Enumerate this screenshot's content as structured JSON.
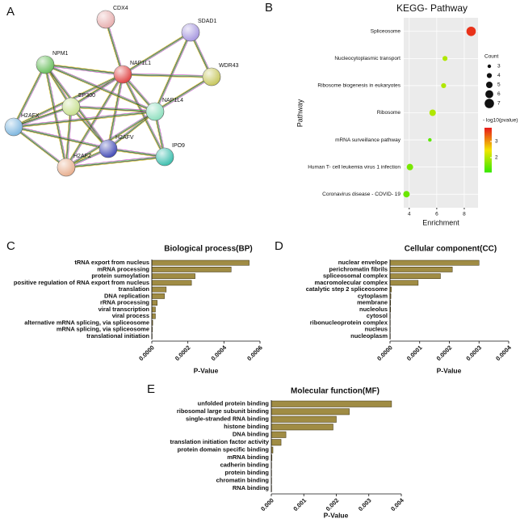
{
  "chart_data": [
    {
      "type": "network",
      "panel": "A",
      "nodes": [
        "CDX4",
        "SDAD1",
        "NPM1",
        "NAP1L1",
        "WDR43",
        "EP300",
        "NAP1L4",
        "H2AFX",
        "H2AFV",
        "IPO9",
        "H2AFZ"
      ]
    },
    {
      "type": "dot",
      "panel": "B",
      "title": "KEGG- Pathway",
      "x_label": "Enrichment",
      "y_label": "Pathway",
      "categories": [
        "Spliceosome",
        "Nucleocytoplasmic transport",
        "Ribosome biogenesis in eukaryotes",
        "Ribosome",
        "mRNA surveillance pathway",
        "Human T- cell leukemia virus 1 infection",
        "Coronavirus disease -  COVID- 19"
      ],
      "values": [
        8.5,
        6.6,
        6.5,
        5.7,
        5.5,
        4.05,
        3.8
      ],
      "sizes": [
        7,
        4,
        4,
        5,
        3,
        5,
        5
      ],
      "color_values": [
        3.7,
        2.0,
        2.0,
        2.0,
        1.4,
        1.6,
        1.5
      ],
      "xlim": [
        3.6,
        9.0
      ],
      "xticks": [
        4,
        6,
        8
      ],
      "size_title": "Count",
      "size_ticks": [
        3,
        4,
        5,
        6,
        7
      ],
      "color_title": "- log10(pvalue)",
      "clim": [
        1.1,
        3.85
      ],
      "cticks": [
        2,
        3
      ],
      "colorscale": [
        "#33e800",
        "#f2e600",
        "#e81c1c"
      ],
      "grid": true
    },
    {
      "type": "hbar",
      "panel": "C",
      "title": "Biological process(BP)",
      "x_label": "P-Value",
      "color": "#a08c44",
      "categories": [
        "tRNA export from nucleus",
        "mRNA processing",
        "protein sumoylation",
        "positive regulation of RNA export from nucleus",
        "translation",
        "DNA replication",
        "rRNA processing",
        "viral transcription",
        "viral process",
        "alternative mRNA splicing, via spliceosome",
        "mRNA splicing, via spliceosome",
        "translational initiation"
      ],
      "values": [
        0.00054,
        0.00044,
        0.00024,
        0.00022,
        8e-05,
        7e-05,
        3e-05,
        2e-05,
        2e-05,
        5e-06,
        3e-06,
        2e-06
      ],
      "xlim": [
        0,
        0.0006
      ],
      "xticks": [
        {
          "value": 0,
          "label": "0.0000"
        },
        {
          "value": 0.0002,
          "label": "0.0002"
        },
        {
          "value": 0.0004,
          "label": "0.0004"
        },
        {
          "value": 0.0006,
          "label": "0.0006"
        }
      ]
    },
    {
      "type": "hbar",
      "panel": "D",
      "title": "Cellular component(CC)",
      "x_label": "P-Value",
      "color": "#a08c44",
      "categories": [
        "nuclear envelope",
        "perichromatin fibrils",
        "spliceosomal complex",
        "macromolecular complex",
        "catalytic step 2 spliceosome",
        "cytoplasm",
        "membrane",
        "nucleolus",
        "cytosol",
        "ribonucleoprotein complex",
        "nucleus",
        "nucleoplasm"
      ],
      "values": [
        0.0003,
        0.00021,
        0.00017,
        9.5e-05,
        5e-06,
        3e-06,
        2e-06,
        2e-06,
        1e-06,
        1e-06,
        1e-06,
        1e-06
      ],
      "xlim": [
        0,
        0.0004
      ],
      "xticks": [
        {
          "value": 0,
          "label": "0.0000"
        },
        {
          "value": 0.0001,
          "label": "0.0001"
        },
        {
          "value": 0.0002,
          "label": "0.0002"
        },
        {
          "value": 0.0003,
          "label": "0.0003"
        },
        {
          "value": 0.0004,
          "label": "0.0004"
        }
      ]
    },
    {
      "type": "hbar",
      "panel": "E",
      "title": "Molecular function(MF)",
      "x_label": "P-Value",
      "color": "#a08c44",
      "categories": [
        "unfolded protein binding",
        "ribosomal large subunit binding",
        "single-stranded RNA binding",
        "histone binding",
        "DNA binding",
        "translation initiation factor activity",
        "protein domain specific binding",
        "mRNA binding",
        "cadherin binding",
        "protein binding",
        "chromatin binding",
        "RNA binding"
      ],
      "values": [
        0.0037,
        0.0024,
        0.002,
        0.0019,
        0.00045,
        0.0003,
        5e-05,
        2e-05,
        1e-05,
        1e-05,
        1e-05,
        1e-05
      ],
      "xlim": [
        0,
        0.004
      ],
      "xticks": [
        {
          "value": 0,
          "label": "0.000"
        },
        {
          "value": 0.001,
          "label": "0.001"
        },
        {
          "value": 0.002,
          "label": "0.002"
        },
        {
          "value": 0.003,
          "label": "0.003"
        },
        {
          "value": 0.004,
          "label": "0.004"
        }
      ]
    }
  ]
}
